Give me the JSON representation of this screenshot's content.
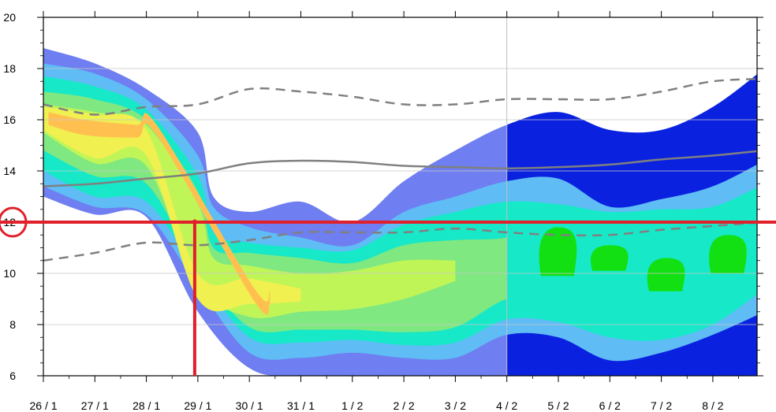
{
  "chart_data": {
    "type": "heatmap",
    "title": "",
    "xlabel": "",
    "ylabel": "",
    "x_tick_labels": [
      "26 / 1",
      "27 / 1",
      "28 / 1",
      "29 / 1",
      "30 / 1",
      "31 / 1",
      "1 / 2",
      "2 / 2",
      "3 / 2",
      "4 / 2",
      "5 / 2",
      "6 / 2",
      "7 / 2",
      "8 / 2"
    ],
    "x_range_days": [
      0,
      14
    ],
    "ylim": [
      6,
      20
    ],
    "y_ticks": [
      6,
      8,
      10,
      12,
      14,
      16,
      18,
      20
    ],
    "grid": true,
    "forecast_start": "4 / 2",
    "colors": {
      "level1": "#6f7ef0",
      "level1_forecast": "#0a22e0",
      "level2": "#5fbcf5",
      "level3": "#16e8c8",
      "level4": "#7fe880",
      "level5": "#c0f558",
      "level6": "#f0f050",
      "level7": "#ffc050",
      "forecast_green": "#12e012",
      "gray_line": "#808080",
      "marker_red": "#e0202a"
    },
    "contours": [
      {
        "level": 1,
        "lower": [
          [
            0,
            13.0
          ],
          [
            1,
            12.3
          ],
          [
            2,
            12.2
          ],
          [
            3,
            8.5
          ],
          [
            4,
            6.3
          ],
          [
            5,
            6.0
          ],
          [
            7,
            6.0
          ],
          [
            9,
            6.0
          ],
          [
            11,
            6.0
          ],
          [
            13,
            6.0
          ],
          [
            14,
            6.0
          ]
        ],
        "upper": [
          [
            0,
            18.8
          ],
          [
            1,
            18.2
          ],
          [
            2,
            17.2
          ],
          [
            3,
            15.5
          ],
          [
            3.3,
            13.0
          ],
          [
            4,
            12.4
          ],
          [
            5,
            12.8
          ],
          [
            6,
            12.0
          ],
          [
            7,
            13.6
          ],
          [
            8,
            14.8
          ],
          [
            9,
            15.8
          ],
          [
            10,
            16.3
          ],
          [
            11,
            15.6
          ],
          [
            12,
            15.6
          ],
          [
            13,
            16.5
          ],
          [
            14,
            18.0
          ]
        ]
      },
      {
        "level": 2,
        "lower": [
          [
            0,
            13.4
          ],
          [
            1,
            12.6
          ],
          [
            2,
            12.3
          ],
          [
            3,
            9.5
          ],
          [
            4,
            6.9
          ],
          [
            5,
            6.7
          ],
          [
            6,
            6.9
          ],
          [
            7,
            6.7
          ],
          [
            8,
            6.7
          ],
          [
            9,
            7.6
          ],
          [
            10,
            7.5
          ],
          [
            11,
            6.6
          ],
          [
            12,
            6.9
          ],
          [
            13,
            7.6
          ],
          [
            14,
            8.5
          ]
        ],
        "upper": [
          [
            0,
            18.2
          ],
          [
            1,
            17.8
          ],
          [
            2,
            16.8
          ],
          [
            3,
            14.6
          ],
          [
            3.3,
            12.6
          ],
          [
            4,
            11.8
          ],
          [
            5,
            11.4
          ],
          [
            6,
            11.1
          ],
          [
            7,
            12.4
          ],
          [
            8,
            13.0
          ],
          [
            9,
            13.6
          ],
          [
            10,
            13.7
          ],
          [
            11,
            12.6
          ],
          [
            12,
            12.9
          ],
          [
            13,
            13.4
          ],
          [
            14,
            14.4
          ]
        ]
      },
      {
        "level": 3,
        "lower": [
          [
            0,
            14.0
          ],
          [
            1,
            13.0
          ],
          [
            2,
            12.8
          ],
          [
            3,
            10.0
          ],
          [
            4,
            7.5
          ],
          [
            5,
            7.3
          ],
          [
            6,
            7.4
          ],
          [
            7,
            7.2
          ],
          [
            8,
            7.3
          ],
          [
            9,
            8.2
          ],
          [
            10,
            8.1
          ],
          [
            11,
            7.5
          ],
          [
            12,
            7.4
          ],
          [
            13,
            8.0
          ],
          [
            14,
            9.4
          ]
        ],
        "upper": [
          [
            0,
            17.7
          ],
          [
            1,
            17.3
          ],
          [
            2,
            16.4
          ],
          [
            3,
            13.8
          ],
          [
            3.3,
            11.6
          ],
          [
            4,
            11.2
          ],
          [
            5,
            11.0
          ],
          [
            6,
            10.9
          ],
          [
            7,
            11.9
          ],
          [
            8,
            12.4
          ],
          [
            9,
            12.8
          ],
          [
            10,
            12.7
          ],
          [
            11,
            12.4
          ],
          [
            12,
            12.5
          ],
          [
            13,
            12.6
          ],
          [
            14,
            13.5
          ]
        ]
      },
      {
        "level": 4,
        "lower": [
          [
            0,
            14.8
          ],
          [
            1,
            13.8
          ],
          [
            2,
            13.5
          ],
          [
            3,
            10.2
          ],
          [
            4,
            7.9
          ],
          [
            5,
            7.8
          ],
          [
            6,
            7.8
          ],
          [
            7,
            7.7
          ],
          [
            8,
            7.9
          ],
          [
            9,
            9.0
          ],
          [
            10,
            9.2
          ],
          [
            11,
            8.7
          ],
          [
            12,
            9.0
          ],
          [
            13,
            9.4
          ]
        ],
        "upper": [
          [
            0,
            17.1
          ],
          [
            1,
            16.8
          ],
          [
            2,
            16.0
          ],
          [
            3,
            13.2
          ],
          [
            3.3,
            11.0
          ],
          [
            4,
            10.8
          ],
          [
            5,
            10.6
          ],
          [
            6,
            10.4
          ],
          [
            7,
            11.1
          ],
          [
            8,
            11.3
          ],
          [
            9,
            11.4
          ],
          [
            10,
            12.0
          ],
          [
            11,
            11.5
          ],
          [
            12,
            11.3
          ],
          [
            13,
            11.5
          ]
        ]
      },
      {
        "level": 5,
        "lower": [
          [
            0,
            15.5
          ],
          [
            1,
            14.3
          ],
          [
            2,
            14.2
          ],
          [
            3,
            9.6
          ],
          [
            4,
            8.3
          ],
          [
            5,
            8.5
          ],
          [
            6,
            8.6
          ],
          [
            7,
            9.0
          ],
          [
            8,
            9.7
          ]
        ],
        "upper": [
          [
            0,
            16.6
          ],
          [
            1,
            16.3
          ],
          [
            2,
            15.8
          ],
          [
            3,
            12.7
          ],
          [
            3.3,
            10.6
          ],
          [
            4,
            10.3
          ],
          [
            5,
            10.0
          ],
          [
            6,
            10.1
          ],
          [
            7,
            10.5
          ],
          [
            8,
            10.5
          ]
        ]
      },
      {
        "level": 6,
        "lower": [
          [
            0,
            15.6
          ],
          [
            1,
            14.5
          ],
          [
            2,
            14.6
          ],
          [
            3,
            9.0
          ],
          [
            4,
            8.8
          ],
          [
            5,
            8.9
          ]
        ],
        "upper": [
          [
            0,
            16.5
          ],
          [
            1,
            16.2
          ],
          [
            2,
            15.6
          ],
          [
            3,
            10.0
          ],
          [
            4,
            9.8
          ],
          [
            5,
            9.4
          ]
        ]
      },
      {
        "level": 7,
        "lower": [
          [
            0.1,
            15.8
          ],
          [
            0.8,
            15.4
          ],
          [
            1.8,
            15.3
          ],
          [
            2.2,
            15.4
          ],
          [
            4.1,
            8.9
          ],
          [
            4.4,
            8.8
          ]
        ],
        "upper": [
          [
            0.1,
            16.3
          ],
          [
            0.8,
            16.0
          ],
          [
            1.8,
            15.8
          ],
          [
            2.2,
            15.8
          ],
          [
            4.1,
            9.4
          ],
          [
            4.4,
            9.3
          ]
        ]
      }
    ],
    "series": [
      {
        "style": "dashed",
        "x": [
          0,
          1,
          2,
          3,
          4,
          5,
          6,
          7,
          8,
          9,
          10,
          11,
          12,
          13,
          14
        ],
        "y": [
          16.6,
          16.2,
          16.5,
          16.6,
          17.2,
          17.1,
          16.9,
          16.6,
          16.6,
          16.8,
          16.8,
          16.8,
          17.1,
          17.5,
          17.6
        ]
      },
      {
        "style": "solid",
        "x": [
          0,
          1,
          2,
          3,
          4,
          5,
          6,
          7,
          8,
          9,
          10,
          11,
          12,
          13,
          14
        ],
        "y": [
          13.4,
          13.5,
          13.7,
          13.9,
          14.3,
          14.4,
          14.35,
          14.2,
          14.15,
          14.1,
          14.15,
          14.25,
          14.45,
          14.6,
          14.8
        ]
      },
      {
        "style": "dashed",
        "x": [
          0,
          1,
          2,
          3,
          4,
          5,
          6,
          7,
          8,
          9,
          10,
          11,
          12,
          13,
          14
        ],
        "y": [
          10.5,
          10.8,
          11.2,
          11.1,
          11.3,
          11.6,
          11.6,
          11.6,
          11.75,
          11.6,
          11.5,
          11.5,
          11.7,
          11.85,
          12.0
        ]
      }
    ],
    "forecast_markers": [
      {
        "x": 10.0,
        "y_low": 9.9,
        "y_high": 11.8
      },
      {
        "x": 11.0,
        "y_low": 10.1,
        "y_high": 11.1
      },
      {
        "x": 12.1,
        "y_low": 9.3,
        "y_high": 10.6
      },
      {
        "x": 13.3,
        "y_low": 10.0,
        "y_high": 11.5
      }
    ],
    "annotations": {
      "horizontal_line_y": 12,
      "vertical_line": {
        "x_label": "29 / 1",
        "x": 3,
        "y_from": 6,
        "y_to": 12.1
      },
      "circled_tick": "12"
    }
  }
}
